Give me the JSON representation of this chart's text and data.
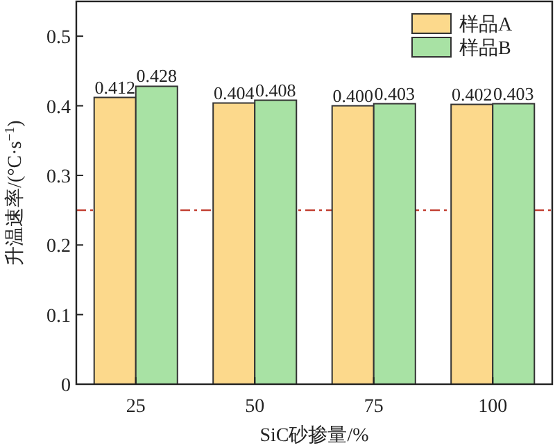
{
  "chart_data": {
    "type": "bar",
    "xlabel": "SiC砂掺量/%",
    "ylabel": "升温速率/(°C·s$^{−1}$)",
    "categories": [
      "25",
      "50",
      "75",
      "100"
    ],
    "series": [
      {
        "name": "样品A",
        "color": "#fcd98c",
        "values": [
          0.412,
          0.404,
          0.4,
          0.402
        ],
        "value_labels": [
          "0.412",
          "0.404",
          "0.400",
          "0.402"
        ]
      },
      {
        "name": "样品B",
        "color": "#a8e2a4",
        "values": [
          0.428,
          0.408,
          0.403,
          0.403
        ],
        "value_labels": [
          "0.428",
          "0.408",
          "0.403",
          "0.403"
        ]
      }
    ],
    "ylim": [
      0,
      0.55
    ],
    "yticks": [
      0,
      0.1,
      0.2,
      0.3,
      0.4,
      0.5
    ],
    "ref_lines": [
      {
        "axis": "y",
        "value": 0.25,
        "color": "#c0392b",
        "line_style": "dashdot"
      }
    ],
    "legend": "top right"
  }
}
